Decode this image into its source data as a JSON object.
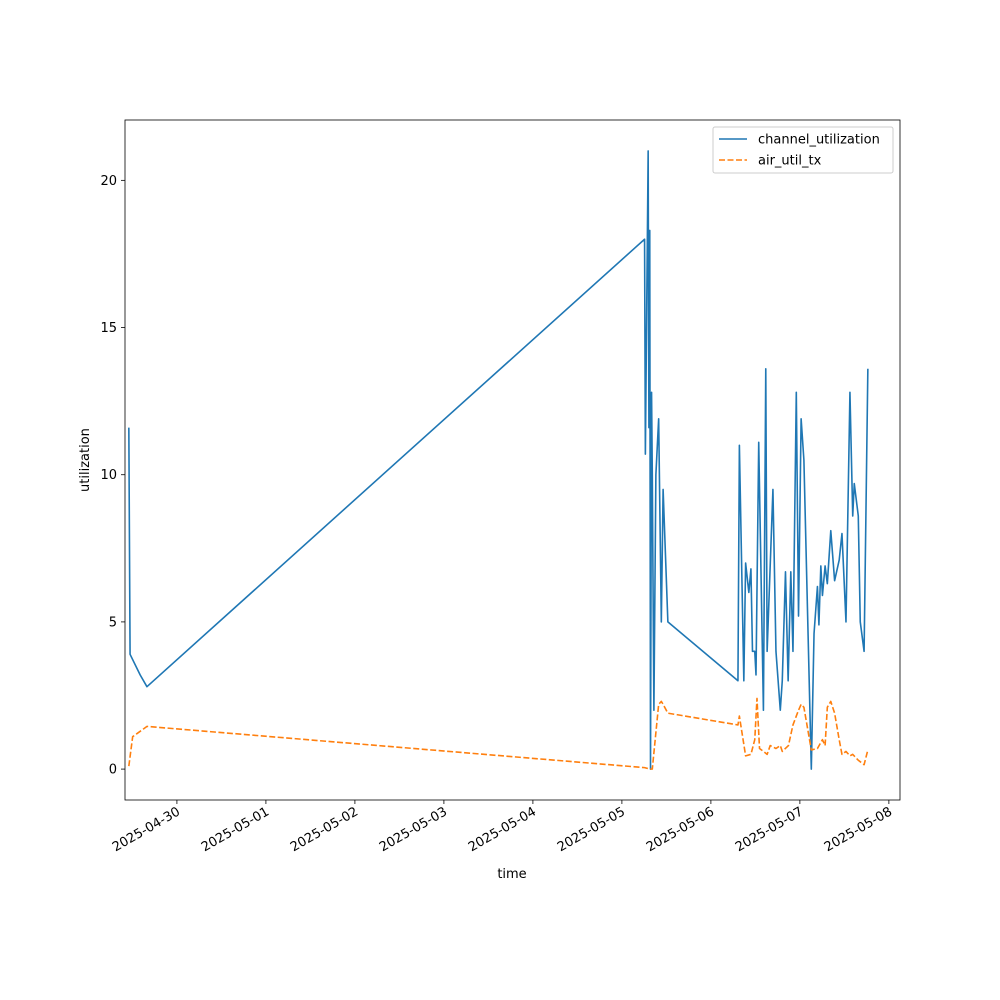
{
  "chart_data": {
    "type": "line",
    "xlabel": "time",
    "ylabel": "utilization",
    "xlim": [
      "2025-04-29 10:00",
      "2025-05-08 03:00"
    ],
    "ylim": [
      -1.05,
      22.05
    ],
    "x_ticks": [
      "2025-04-30",
      "2025-05-01",
      "2025-05-02",
      "2025-05-03",
      "2025-05-04",
      "2025-05-05",
      "2025-05-06",
      "2025-05-07",
      "2025-05-08"
    ],
    "y_ticks": [
      0,
      5,
      10,
      15,
      20
    ],
    "legend": {
      "position": "top-right"
    },
    "grid": false,
    "series": [
      {
        "name": "channel_utilization",
        "color": "#1f77b4",
        "style": "solid",
        "points": [
          [
            "2025-04-29 11:02",
            11.6
          ],
          [
            "2025-04-29 11:22",
            3.9
          ],
          [
            "2025-04-29 14:05",
            3.2
          ],
          [
            "2025-04-29 15:55",
            2.8
          ],
          [
            "2025-05-05 06:07",
            18.0
          ],
          [
            "2025-05-05 06:20",
            10.7
          ],
          [
            "2025-05-05 07:05",
            21.0
          ],
          [
            "2025-05-05 07:17",
            11.6
          ],
          [
            "2025-05-05 07:31",
            18.3
          ],
          [
            "2025-05-05 07:43",
            0.0
          ],
          [
            "2025-05-05 08:00",
            12.8
          ],
          [
            "2025-05-05 08:12",
            10.0
          ],
          [
            "2025-05-05 08:38",
            2.0
          ],
          [
            "2025-05-05 09:10",
            10.0
          ],
          [
            "2025-05-05 09:55",
            11.9
          ],
          [
            "2025-05-05 10:38",
            5.0
          ],
          [
            "2025-05-05 11:07",
            9.5
          ],
          [
            "2025-05-05 12:24",
            5.0
          ],
          [
            "2025-05-06 07:18",
            3.0
          ],
          [
            "2025-05-06 07:41",
            11.0
          ],
          [
            "2025-05-06 08:53",
            3.0
          ],
          [
            "2025-05-06 09:22",
            7.0
          ],
          [
            "2025-05-06 10:14",
            6.0
          ],
          [
            "2025-05-06 10:48",
            6.8
          ],
          [
            "2025-05-06 11:13",
            4.0
          ],
          [
            "2025-05-06 11:50",
            4.0
          ],
          [
            "2025-05-06 12:10",
            3.2
          ],
          [
            "2025-05-06 12:54",
            11.1
          ],
          [
            "2025-05-06 14:10",
            2.0
          ],
          [
            "2025-05-06 14:48",
            13.6
          ],
          [
            "2025-05-06 15:10",
            4.0
          ],
          [
            "2025-05-06 16:44",
            9.5
          ],
          [
            "2025-05-06 17:33",
            4.0
          ],
          [
            "2025-05-06 18:43",
            2.0
          ],
          [
            "2025-05-06 19:15",
            3.0
          ],
          [
            "2025-05-06 20:07",
            6.7
          ],
          [
            "2025-05-06 20:50",
            3.0
          ],
          [
            "2025-05-06 21:33",
            6.7
          ],
          [
            "2025-05-06 22:08",
            4.0
          ],
          [
            "2025-05-06 23:02",
            12.8
          ],
          [
            "2025-05-06 23:38",
            5.2
          ],
          [
            "2025-05-07 00:20",
            11.9
          ],
          [
            "2025-05-07 01:05",
            10.5
          ],
          [
            "2025-05-07 03:05",
            0.0
          ],
          [
            "2025-05-07 03:49",
            4.6
          ],
          [
            "2025-05-07 04:44",
            6.2
          ],
          [
            "2025-05-07 05:08",
            4.9
          ],
          [
            "2025-05-07 05:39",
            6.9
          ],
          [
            "2025-05-07 06:05",
            5.9
          ],
          [
            "2025-05-07 06:48",
            6.9
          ],
          [
            "2025-05-07 07:24",
            6.3
          ],
          [
            "2025-05-07 08:20",
            8.1
          ],
          [
            "2025-05-07 09:22",
            6.4
          ],
          [
            "2025-05-07 10:36",
            7.1
          ],
          [
            "2025-05-07 11:21",
            8.0
          ],
          [
            "2025-05-07 12:26",
            5.0
          ],
          [
            "2025-05-07 13:30",
            12.8
          ],
          [
            "2025-05-07 14:15",
            8.6
          ],
          [
            "2025-05-07 14:40",
            9.7
          ],
          [
            "2025-05-07 15:45",
            8.6
          ],
          [
            "2025-05-07 16:17",
            5.0
          ],
          [
            "2025-05-07 17:19",
            4.0
          ],
          [
            "2025-05-07 18:20",
            13.6
          ]
        ]
      },
      {
        "name": "air_util_tx",
        "color": "#ff7f0e",
        "style": "dashed",
        "points": [
          [
            "2025-04-29 11:02",
            0.1
          ],
          [
            "2025-04-29 12:04",
            1.1
          ],
          [
            "2025-04-29 15:56",
            1.45
          ],
          [
            "2025-05-05 06:07",
            0.05
          ],
          [
            "2025-05-05 07:31",
            0.0
          ],
          [
            "2025-05-05 08:12",
            0.0
          ],
          [
            "2025-05-05 09:55",
            2.2
          ],
          [
            "2025-05-05 10:38",
            2.3
          ],
          [
            "2025-05-05 11:07",
            2.2
          ],
          [
            "2025-05-05 12:24",
            1.9
          ],
          [
            "2025-05-06 07:18",
            1.5
          ],
          [
            "2025-05-06 07:41",
            1.8
          ],
          [
            "2025-05-06 09:22",
            0.45
          ],
          [
            "2025-05-06 10:48",
            0.5
          ],
          [
            "2025-05-06 11:50",
            1.0
          ],
          [
            "2025-05-06 12:26",
            2.4
          ],
          [
            "2025-05-06 13:07",
            0.7
          ],
          [
            "2025-05-06 14:10",
            0.6
          ],
          [
            "2025-05-06 15:10",
            0.5
          ],
          [
            "2025-05-06 16:00",
            0.8
          ],
          [
            "2025-05-06 17:33",
            0.7
          ],
          [
            "2025-05-06 18:43",
            0.8
          ],
          [
            "2025-05-06 19:15",
            0.6
          ],
          [
            "2025-05-06 20:55",
            0.8
          ],
          [
            "2025-05-06 22:08",
            1.5
          ],
          [
            "2025-05-06 23:38",
            2.0
          ],
          [
            "2025-05-07 00:20",
            2.2
          ],
          [
            "2025-05-07 01:05",
            2.1
          ],
          [
            "2025-05-07 03:05",
            0.65
          ],
          [
            "2025-05-07 04:44",
            0.7
          ],
          [
            "2025-05-07 06:05",
            1.0
          ],
          [
            "2025-05-07 06:48",
            0.8
          ],
          [
            "2025-05-07 07:24",
            2.1
          ],
          [
            "2025-05-07 08:20",
            2.3
          ],
          [
            "2025-05-07 09:22",
            1.9
          ],
          [
            "2025-05-07 10:36",
            1.0
          ],
          [
            "2025-05-07 11:21",
            0.5
          ],
          [
            "2025-05-07 12:26",
            0.6
          ],
          [
            "2025-05-07 13:30",
            0.45
          ],
          [
            "2025-05-07 14:15",
            0.5
          ],
          [
            "2025-05-07 15:45",
            0.3
          ],
          [
            "2025-05-07 17:19",
            0.15
          ],
          [
            "2025-05-07 18:20",
            0.65
          ]
        ]
      }
    ]
  }
}
